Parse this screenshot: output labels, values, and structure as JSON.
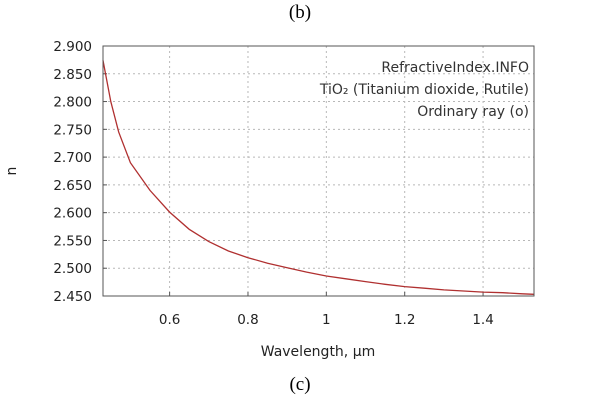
{
  "figure": {
    "label_top": "(b)",
    "label_bottom": "(c)"
  },
  "chart_data": {
    "type": "line",
    "xlabel": "Wavelength, µm",
    "ylabel": "n",
    "xlim": [
      0.43,
      1.53
    ],
    "ylim": [
      2.45,
      2.9
    ],
    "x_ticks": [
      0.6,
      0.8,
      1.0,
      1.2,
      1.4
    ],
    "x_tick_labels": [
      "0.6",
      "0.8",
      "1",
      "1.2",
      "1.4"
    ],
    "y_ticks": [
      2.45,
      2.5,
      2.55,
      2.6,
      2.65,
      2.7,
      2.75,
      2.8,
      2.85,
      2.9
    ],
    "y_tick_labels": [
      "2.450",
      "2.500",
      "2.550",
      "2.600",
      "2.650",
      "2.700",
      "2.750",
      "2.800",
      "2.850",
      "2.900"
    ],
    "grid": true,
    "annotations": [
      "RefractiveIndex.INFO",
      "TiO₂ (Titanium dioxide, Rutile)",
      "Ordinary ray (o)"
    ],
    "annotation_placement": "top-right",
    "line_color": "#b03030",
    "series": [
      {
        "x": [
          0.43,
          0.45,
          0.47,
          0.5,
          0.55,
          0.6,
          0.65,
          0.7,
          0.75,
          0.8,
          0.85,
          0.9,
          0.95,
          1.0,
          1.05,
          1.1,
          1.15,
          1.2,
          1.25,
          1.3,
          1.35,
          1.4,
          1.45,
          1.5,
          1.53
        ],
        "y": [
          2.874,
          2.8,
          2.745,
          2.69,
          2.64,
          2.601,
          2.57,
          2.548,
          2.531,
          2.519,
          2.509,
          2.501,
          2.493,
          2.486,
          2.481,
          2.476,
          2.471,
          2.467,
          2.464,
          2.461,
          2.459,
          2.457,
          2.456,
          2.454,
          2.453
        ]
      }
    ]
  }
}
